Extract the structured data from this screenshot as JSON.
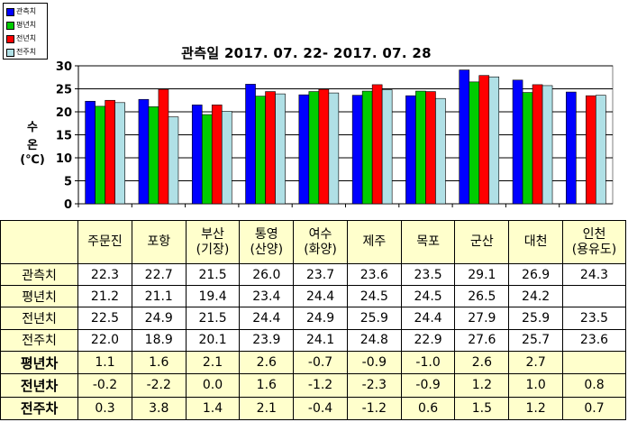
{
  "chart_data": {
    "type": "bar",
    "title": "관측일 2017. 07. 22- 2017. 07. 28",
    "ylabel": [
      "수",
      "온",
      "(℃)"
    ],
    "ylim": [
      0,
      30
    ],
    "yticks": [
      "0",
      "5",
      "10",
      "15",
      "20",
      "25",
      "30"
    ],
    "categories": [
      "주문진",
      "포항",
      "부산(기장)",
      "통영(산양)",
      "여수(화양)",
      "제주",
      "목포",
      "군산",
      "대천",
      "인천(용유도)"
    ],
    "series": [
      {
        "name": "관측치",
        "color": "#0000ff",
        "values": [
          22.3,
          22.7,
          21.5,
          26.0,
          23.7,
          23.6,
          23.5,
          29.1,
          26.9,
          24.3
        ]
      },
      {
        "name": "평년치",
        "color": "#00cc00",
        "values": [
          21.2,
          21.1,
          19.4,
          23.4,
          24.4,
          24.5,
          24.5,
          26.5,
          24.2,
          null
        ]
      },
      {
        "name": "전년치",
        "color": "#ff0000",
        "values": [
          22.5,
          24.9,
          21.5,
          24.4,
          24.9,
          25.9,
          24.4,
          27.9,
          25.9,
          23.5
        ]
      },
      {
        "name": "전주치",
        "color": "#b0e0e6",
        "values": [
          22.0,
          18.9,
          20.1,
          23.9,
          24.1,
          24.8,
          22.9,
          27.6,
          25.7,
          23.6
        ]
      }
    ],
    "grid": "horizontal",
    "legend": "top-left"
  },
  "table": {
    "headers": [
      [
        "",
        ""
      ],
      [
        "주문진",
        ""
      ],
      [
        "포항",
        ""
      ],
      [
        "부산",
        "(기장)"
      ],
      [
        "통영",
        "(산양)"
      ],
      [
        "여수",
        "(화양)"
      ],
      [
        "제주",
        ""
      ],
      [
        "목포",
        ""
      ],
      [
        "군산",
        ""
      ],
      [
        "대천",
        ""
      ],
      [
        "인천",
        "(용유도)"
      ]
    ],
    "rows": [
      {
        "label": "관측치",
        "values": [
          "22.3",
          "22.7",
          "21.5",
          "26.0",
          "23.7",
          "23.6",
          "23.5",
          "29.1",
          "26.9",
          "24.3"
        ]
      },
      {
        "label": "평년치",
        "values": [
          "21.2",
          "21.1",
          "19.4",
          "23.4",
          "24.4",
          "24.5",
          "24.5",
          "26.5",
          "24.2",
          ""
        ]
      },
      {
        "label": "전년치",
        "values": [
          "22.5",
          "24.9",
          "21.5",
          "24.4",
          "24.9",
          "25.9",
          "24.4",
          "27.9",
          "25.9",
          "23.5"
        ]
      },
      {
        "label": "전주치",
        "values": [
          "22.0",
          "18.9",
          "20.1",
          "23.9",
          "24.1",
          "24.8",
          "22.9",
          "27.6",
          "25.7",
          "23.6"
        ]
      },
      {
        "label": "평년차",
        "values": [
          "1.1",
          "1.6",
          "2.1",
          "2.6",
          "-0.7",
          "-0.9",
          "-1.0",
          "2.6",
          "2.7",
          ""
        ]
      },
      {
        "label": "전년차",
        "values": [
          "-0.2",
          "-2.2",
          "0.0",
          "1.6",
          "-1.2",
          "-2.3",
          "-0.9",
          "1.2",
          "1.0",
          "0.8"
        ]
      },
      {
        "label": "전주차",
        "values": [
          "0.3",
          "3.8",
          "1.4",
          "2.1",
          "-0.4",
          "-1.2",
          "0.6",
          "1.5",
          "1.2",
          "0.7"
        ]
      }
    ]
  }
}
